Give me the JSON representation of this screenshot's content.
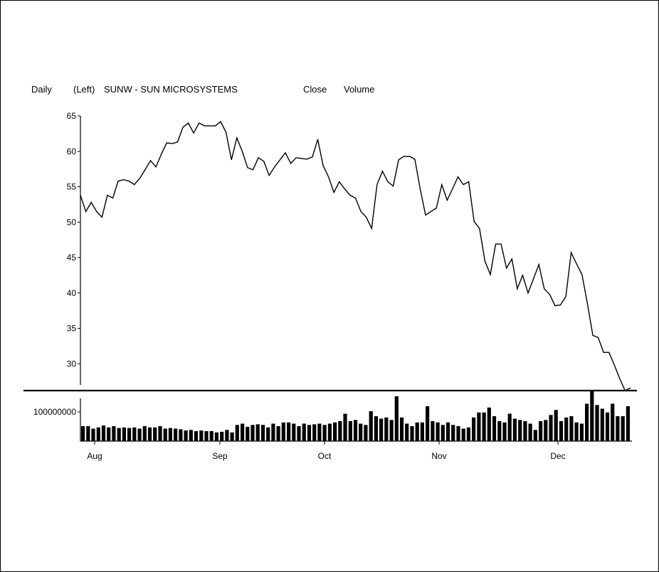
{
  "header": {
    "period": "Daily",
    "axis_side": "(Left)",
    "symbol_title": "SUNW - SUN MICROSYSTEMS",
    "series_close": "Close",
    "series_volume": "Volume"
  },
  "chart_data": [
    {
      "type": "line",
      "title": "SUNW - SUN MICROSYSTEMS",
      "series": [
        {
          "name": "Close",
          "values": [
            53.8,
            51.5,
            52.8,
            51.5,
            50.7,
            53.8,
            53.4,
            55.8,
            56.0,
            55.8,
            55.3,
            56.2,
            57.4,
            58.7,
            57.8,
            59.6,
            61.2,
            61.1,
            61.3,
            63.4,
            64.0,
            62.6,
            64.0,
            63.6,
            63.6,
            63.6,
            64.2,
            62.7,
            58.8,
            61.9,
            60.0,
            57.7,
            57.4,
            59.1,
            58.6,
            56.6,
            57.8,
            58.8,
            59.8,
            58.3,
            59.1,
            59.0,
            58.9,
            59.2,
            61.7,
            58.0,
            56.4,
            54.2,
            55.7,
            54.7,
            53.8,
            53.4,
            51.5,
            50.7,
            49.1,
            55.3,
            57.2,
            55.7,
            55.1,
            58.8,
            59.3,
            59.3,
            58.9,
            54.7,
            51.0,
            51.5,
            52.0,
            55.3,
            53.1,
            54.7,
            56.4,
            55.3,
            55.7,
            50.1,
            49.1,
            44.5,
            42.6,
            46.9,
            46.9,
            43.5,
            44.8,
            40.6,
            42.5,
            40.0,
            42.0,
            44.0,
            40.6,
            39.8,
            38.2,
            38.3,
            39.5,
            45.7,
            44.1,
            42.6,
            38.5,
            34.0,
            33.7,
            31.6,
            31.6,
            29.8,
            27.9,
            26.2,
            26.6
          ],
          "x_range": [
            "Aug",
            "Dec"
          ]
        }
      ],
      "xlabel": "",
      "ylabel": "",
      "y_ticks": [
        30,
        35,
        40,
        45,
        50,
        55,
        60,
        65
      ],
      "ylim": [
        26,
        65
      ],
      "legend": "none",
      "grid": false
    },
    {
      "type": "bar",
      "series": [
        {
          "name": "Volume",
          "values": [
            1.2,
            1.2,
            1.0,
            1.1,
            1.25,
            1.1,
            1.2,
            1.05,
            1.1,
            1.05,
            1.1,
            1.0,
            1.2,
            1.1,
            1.1,
            1.2,
            1.0,
            1.05,
            1.0,
            0.95,
            0.85,
            0.9,
            0.8,
            0.85,
            0.8,
            0.8,
            0.7,
            0.75,
            0.9,
            0.7,
            1.3,
            1.4,
            1.15,
            1.3,
            1.35,
            1.3,
            1.1,
            1.4,
            1.2,
            1.5,
            1.5,
            1.4,
            1.2,
            1.4,
            1.3,
            1.35,
            1.4,
            1.3,
            1.4,
            1.5,
            1.6,
            2.2,
            1.6,
            1.7,
            1.4,
            1.3,
            2.4,
            2.0,
            1.8,
            1.9,
            1.7,
            3.6,
            1.9,
            1.4,
            1.2,
            1.5,
            1.5,
            2.8,
            1.6,
            1.5,
            1.3,
            1.5,
            1.3,
            1.2,
            1.0,
            1.1,
            1.9,
            2.3,
            2.3,
            2.7,
            2.0,
            1.6,
            1.5,
            2.2,
            1.8,
            1.7,
            1.6,
            1.4,
            0.9,
            1.6,
            1.7,
            2.1,
            2.5,
            1.6,
            1.9,
            2.0,
            1.5,
            1.4,
            3.0,
            4.0,
            2.9,
            2.6,
            2.3,
            3.0,
            2.0,
            2.0,
            2.8
          ]
        }
      ],
      "y_ticks": [
        100000000
      ],
      "y_tick_labels": [
        "100000000"
      ],
      "x_ticks": [
        "Aug",
        "Sep",
        "Oct",
        "Nov",
        "Dec"
      ],
      "xlabel": "",
      "ylabel": "",
      "legend": "none",
      "grid": false
    }
  ]
}
